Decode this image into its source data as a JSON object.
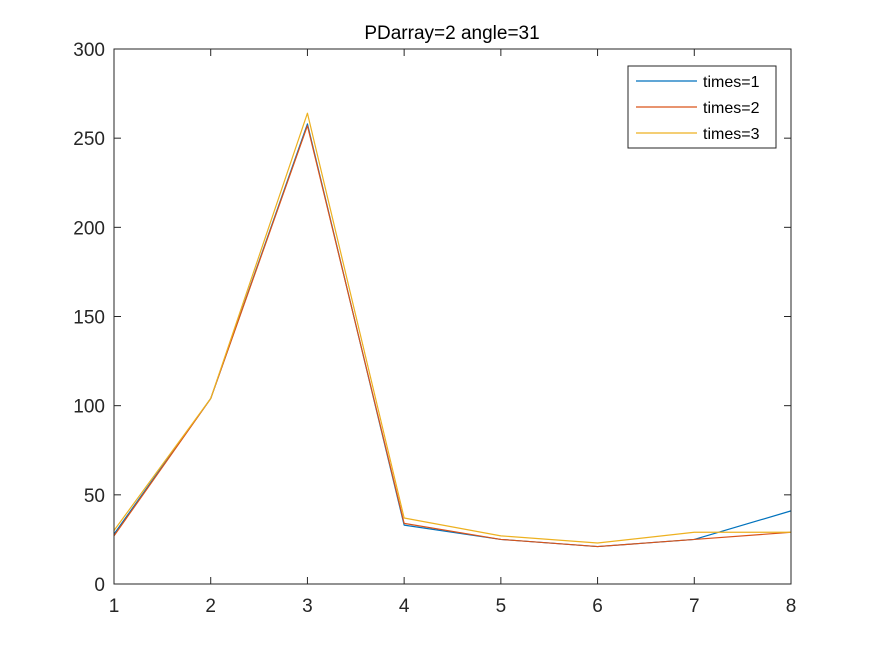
{
  "chart_data": {
    "type": "line",
    "title": "PDarray=2  angle=31",
    "xlabel": "",
    "ylabel": "",
    "xlim": [
      1,
      8
    ],
    "ylim": [
      0,
      300
    ],
    "xticks": [
      1,
      2,
      3,
      4,
      5,
      6,
      7,
      8
    ],
    "yticks": [
      0,
      50,
      100,
      150,
      200,
      250,
      300
    ],
    "grid": false,
    "legend_position": "top-right",
    "x": [
      1,
      2,
      3,
      4,
      5,
      6,
      7,
      8
    ],
    "series": [
      {
        "name": "times=1",
        "color": "#0072BD",
        "values": [
          28,
          104,
          258,
          33,
          25,
          21,
          25,
          41
        ]
      },
      {
        "name": "times=2",
        "color": "#D95319",
        "values": [
          27,
          104,
          257,
          34,
          25,
          21,
          25,
          29
        ]
      },
      {
        "name": "times=3",
        "color": "#EDB120",
        "values": [
          30,
          104,
          264,
          37,
          27,
          23,
          29,
          29
        ]
      }
    ]
  }
}
